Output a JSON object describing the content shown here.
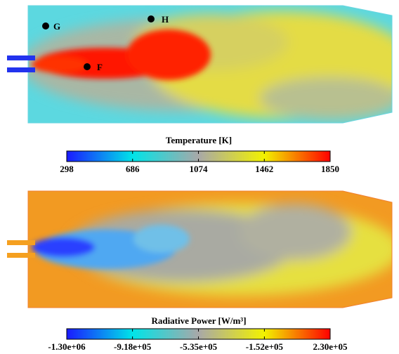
{
  "panels": [
    {
      "points": [
        {
          "label": "G"
        },
        {
          "label": "H"
        },
        {
          "label": "F"
        }
      ],
      "colorbar": {
        "title": "Temperature [K]",
        "lim": [
          298,
          1850
        ],
        "ticks": [
          298,
          686,
          1074,
          1462,
          1850
        ]
      }
    },
    {
      "colorbar": {
        "title": "Radiative Power [W/m³]",
        "lim": [
          -1300000,
          230000
        ],
        "ticks": [
          {
            "value": -1300000,
            "label": "-1.30e+06"
          },
          {
            "value": -918000,
            "label": "-9.18e+05"
          },
          {
            "value": -535000,
            "label": "-5.35e+05"
          },
          {
            "value": -152000,
            "label": "-1.52e+05"
          },
          {
            "value": 230000,
            "label": "2.30e+05"
          }
        ]
      }
    }
  ]
}
